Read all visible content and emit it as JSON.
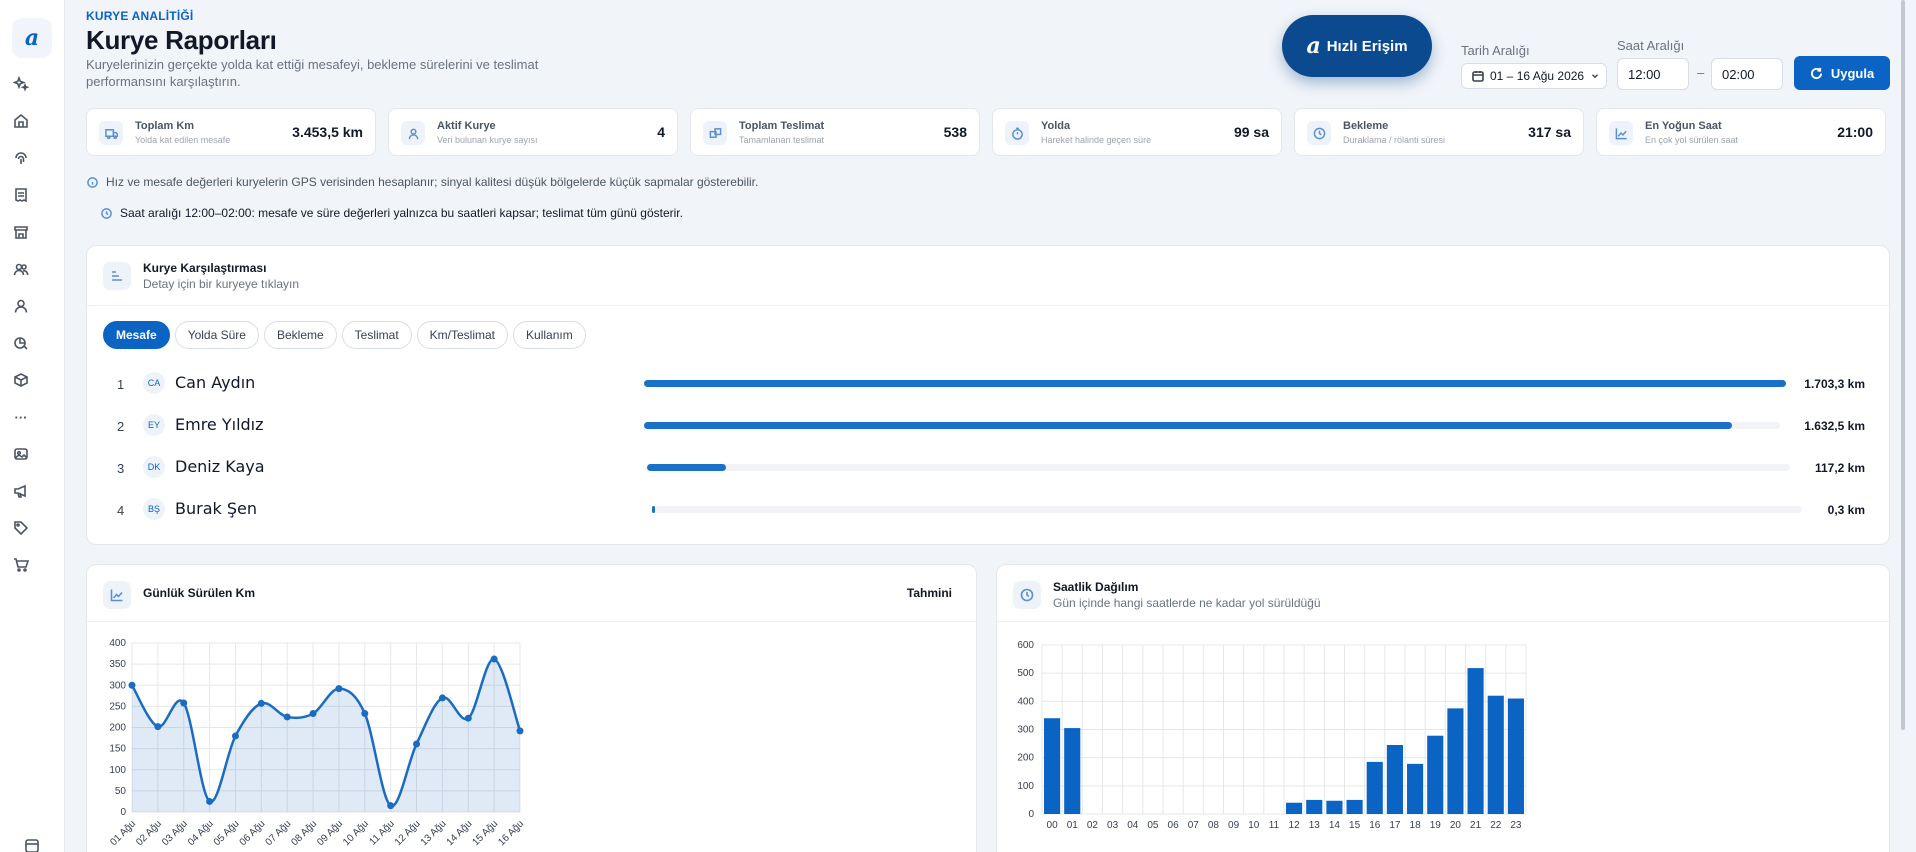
{
  "app": {
    "logo_glyph": "a"
  },
  "sidebar": {
    "icons": [
      "sparkle-icon",
      "home-icon",
      "fingerprint-icon",
      "receipt-icon",
      "store-icon",
      "users-icon",
      "user-icon",
      "chart-icon",
      "package-icon",
      "more-icon",
      "media-icon",
      "megaphone-icon",
      "tag-icon",
      "cart-icon",
      "window-icon"
    ],
    "more_glyph": "···"
  },
  "header": {
    "eyebrow": "KURYE ANALİTİĞİ",
    "title": "Kurye Raporları",
    "description": "Kuryelerinizin gerçekte yolda kat ettiği mesafeyi, bekleme sürelerini ve teslimat performansını karşılaştırın."
  },
  "quick_access": {
    "logo": "a",
    "label": "Hızlı Erişim"
  },
  "filters": {
    "date_label": "Tarih Aralığı",
    "date_value": "01 – 16 Ağu 2026",
    "time_label": "Saat Aralığı",
    "time_from": "12:00",
    "time_separator": "–",
    "time_to": "02:00",
    "apply_label": "Uygula"
  },
  "stats": [
    {
      "label": "Toplam Km",
      "sub": "Yolda kat edilen mesafe",
      "value": "3.453,5 km",
      "icon": "truck-icon"
    },
    {
      "label": "Aktif Kurye",
      "sub": "Veri bulunan kurye sayısı",
      "value": "4",
      "icon": "user-icon"
    },
    {
      "label": "Toplam Teslimat",
      "sub": "Tamamlanan teslimat",
      "value": "538",
      "icon": "boxes-icon"
    },
    {
      "label": "Yolda",
      "sub": "Hareket halinde geçen süre",
      "value": "99 sa",
      "icon": "timer-icon"
    },
    {
      "label": "Bekleme",
      "sub": "Duraklama / rölanti süresi",
      "value": "317 sa",
      "icon": "clock-icon"
    },
    {
      "label": "En Yoğun Saat",
      "sub": "En çok yol sürülen saat",
      "value": "21:00",
      "icon": "trend-icon"
    }
  ],
  "notices": {
    "gps": "Hız ve mesafe değerleri kuryelerin GPS verisinden hesaplanır; sinyal kalitesi düşük bölgelerde küçük sapmalar gösterebilir.",
    "time": "Saat aralığı 12:00–02:00: mesafe ve süre değerleri yalnızca bu saatleri kapsar; teslimat tüm günü gösterir."
  },
  "comparison": {
    "title": "Kurye Karşılaştırması",
    "subtitle": "Detay için bir kuryeye tıklayın",
    "tabs": [
      "Mesafe",
      "Yolda Süre",
      "Bekleme",
      "Teslimat",
      "Km/Teslimat",
      "Kullanım"
    ],
    "active_tab": "Mesafe",
    "rows": [
      {
        "rank": "1",
        "initials": "CA",
        "name": "Can Aydın",
        "value": "1.703,3 km",
        "share": 1.0
      },
      {
        "rank": "2",
        "initials": "EY",
        "name": "Emre Yıldız",
        "value": "1.632,5 km",
        "share": 0.958
      },
      {
        "rank": "3",
        "initials": "DK",
        "name": "Deniz Kaya",
        "value": "117,2 km",
        "share": 0.069
      },
      {
        "rank": "4",
        "initials": "BŞ",
        "name": "Burak Şen",
        "value": "0,3 km",
        "share": 0.002
      }
    ]
  },
  "daily_card": {
    "title": "Günlük Sürülen Km",
    "badge": "Tahmini"
  },
  "hourly_card": {
    "title": "Saatlik Dağılım",
    "subtitle": "Gün içinde hangi saatlerde ne kadar yol sürüldüğü"
  },
  "chart_data": [
    {
      "type": "area",
      "title": "",
      "x": [
        "01 Ağu",
        "02 Ağu",
        "03 Ağu",
        "04 Ağu",
        "05 Ağu",
        "06 Ağu",
        "07 Ağu",
        "08 Ağu",
        "09 Ağu",
        "10 Ağu",
        "11 Ağu",
        "12 Ağu",
        "13 Ağu",
        "14 Ağu",
        "15 Ağu",
        "16 Ağu"
      ],
      "values": [
        300,
        202,
        258,
        25,
        180,
        257,
        225,
        233,
        292,
        233,
        15,
        161,
        270,
        222,
        362,
        192
      ],
      "ylim": [
        0,
        400
      ],
      "yticks": [
        0,
        50,
        100,
        150,
        200,
        250,
        300,
        350,
        400
      ],
      "color": "#1a6cc2",
      "grid": true
    },
    {
      "type": "bar",
      "title": "",
      "categories": [
        "00",
        "01",
        "02",
        "03",
        "04",
        "05",
        "06",
        "07",
        "08",
        "09",
        "10",
        "11",
        "12",
        "13",
        "14",
        "15",
        "16",
        "17",
        "18",
        "19",
        "20",
        "21",
        "22",
        "23"
      ],
      "values": [
        340,
        305,
        0,
        0,
        0,
        0,
        0,
        0,
        0,
        0,
        0,
        0,
        40,
        50,
        47,
        50,
        185,
        245,
        178,
        278,
        375,
        518,
        420,
        410
      ],
      "ylim": [
        0,
        600
      ],
      "yticks": [
        0,
        100,
        200,
        300,
        400,
        500,
        600
      ],
      "color": "#0b63c4",
      "grid": true
    }
  ]
}
